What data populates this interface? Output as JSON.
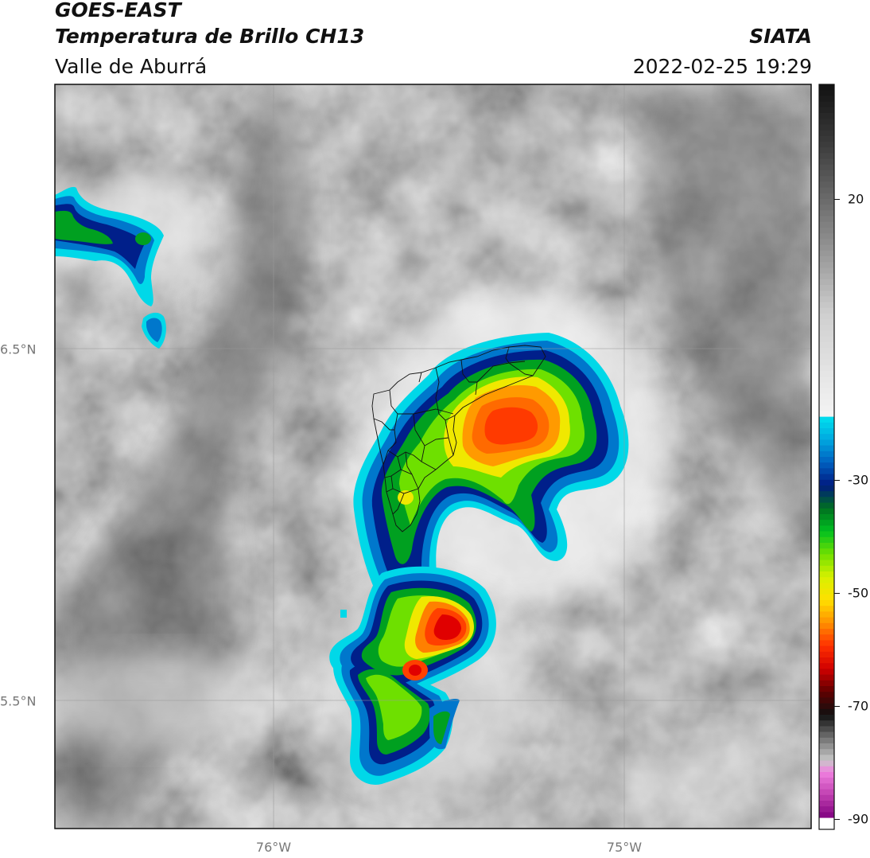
{
  "header": {
    "satellite": "GOES-EAST",
    "product": "Temperatura de Brillo CH13",
    "region": "Valle de Aburrá",
    "brand": "SIATA",
    "datetime": "2022-02-25 19:29"
  },
  "map": {
    "latitude_labels": [
      "6.5°N",
      "5.5°N"
    ],
    "longitude_labels": [
      "76°W",
      "75°W"
    ],
    "gridlines": true
  },
  "colorbar": {
    "tick_labels": [
      "20",
      "-30",
      "-50",
      "-70",
      "-90"
    ],
    "range": [
      -90,
      40
    ],
    "palette": {
      "warm": "grayscale",
      "cold": [
        "#00d8e8",
        "#0070d0",
        "#001f8a",
        "#00a020",
        "#6ee000",
        "#f0e800",
        "#ff8000",
        "#e00000",
        "#300000",
        "#909090",
        "#f060d0",
        "#800080"
      ]
    }
  }
}
